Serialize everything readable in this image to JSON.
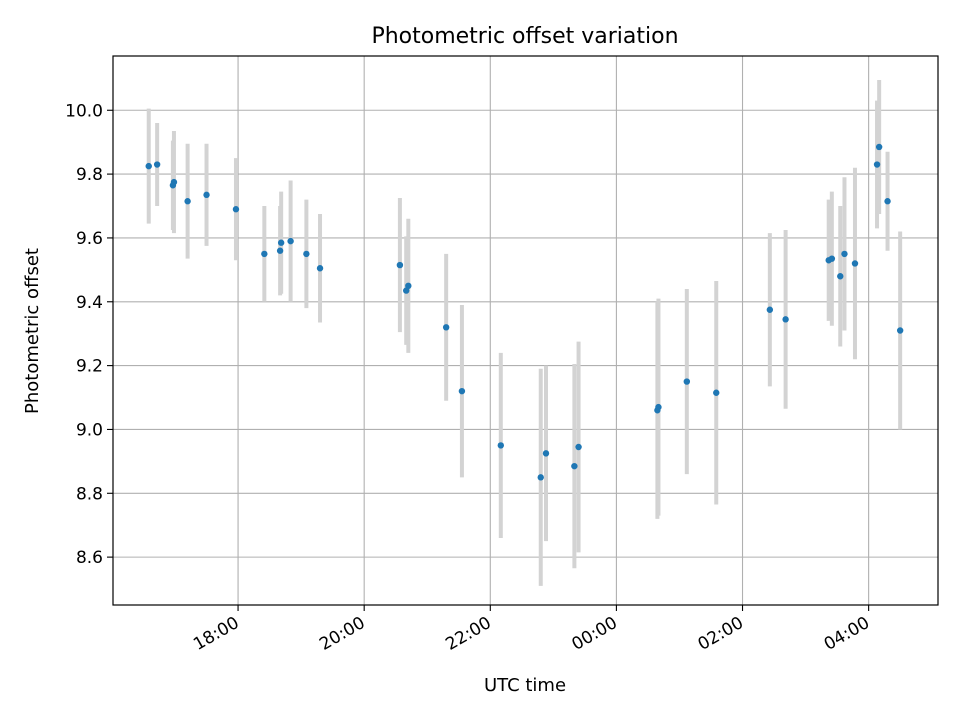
{
  "chart_data": {
    "type": "scatter",
    "title": "Photometric offset variation",
    "xlabel": "UTC time",
    "ylabel": "Photometric offset",
    "x_ticks": [
      "18:00",
      "20:00",
      "22:00",
      "00:00",
      "02:00",
      "04:00"
    ],
    "y_ticks": [
      8.6,
      8.8,
      9.0,
      9.2,
      9.4,
      9.6,
      9.8,
      10.0
    ],
    "xlim": [
      "16:01",
      "05:06"
    ],
    "ylim": [
      8.45,
      10.17
    ],
    "grid": true,
    "x_axis_days": 1,
    "colors": {
      "points": "#1f77b4",
      "errorbars": "#d3d3d3"
    },
    "points": [
      {
        "time": "16:35",
        "y": 9.825,
        "err": 0.18
      },
      {
        "time": "16:43",
        "y": 9.83,
        "err": 0.13
      },
      {
        "time": "16:58",
        "y": 9.765,
        "err": 0.14
      },
      {
        "time": "16:59",
        "y": 9.775,
        "err": 0.16
      },
      {
        "time": "17:12",
        "y": 9.715,
        "err": 0.18
      },
      {
        "time": "17:30",
        "y": 9.735,
        "err": 0.16
      },
      {
        "time": "17:58",
        "y": 9.69,
        "err": 0.16
      },
      {
        "time": "18:25",
        "y": 9.55,
        "err": 0.15
      },
      {
        "time": "18:40",
        "y": 9.56,
        "err": 0.14
      },
      {
        "time": "18:41",
        "y": 9.585,
        "err": 0.16
      },
      {
        "time": "18:50",
        "y": 9.59,
        "err": 0.19
      },
      {
        "time": "19:05",
        "y": 9.55,
        "err": 0.17
      },
      {
        "time": "19:18",
        "y": 9.505,
        "err": 0.17
      },
      {
        "time": "20:34",
        "y": 9.515,
        "err": 0.21
      },
      {
        "time": "20:40",
        "y": 9.435,
        "err": 0.17
      },
      {
        "time": "20:42",
        "y": 9.45,
        "err": 0.21
      },
      {
        "time": "21:18",
        "y": 9.32,
        "err": 0.23
      },
      {
        "time": "21:33",
        "y": 9.12,
        "err": 0.27
      },
      {
        "time": "22:10",
        "y": 8.95,
        "err": 0.29
      },
      {
        "time": "22:48",
        "y": 8.85,
        "err": 0.34
      },
      {
        "time": "22:53",
        "y": 8.925,
        "err": 0.275
      },
      {
        "time": "23:20",
        "y": 8.885,
        "err": 0.32
      },
      {
        "time": "23:24",
        "y": 8.945,
        "err": 0.33
      },
      {
        "time": "00:39",
        "y": 9.06,
        "err": 0.34
      },
      {
        "time": "00:40",
        "y": 9.07,
        "err": 0.34
      },
      {
        "time": "01:07",
        "y": 9.15,
        "err": 0.29
      },
      {
        "time": "01:35",
        "y": 9.115,
        "err": 0.35
      },
      {
        "time": "02:26",
        "y": 9.375,
        "err": 0.24
      },
      {
        "time": "02:41",
        "y": 9.345,
        "err": 0.28
      },
      {
        "time": "03:22",
        "y": 9.53,
        "err": 0.19
      },
      {
        "time": "03:25",
        "y": 9.535,
        "err": 0.21
      },
      {
        "time": "03:33",
        "y": 9.48,
        "err": 0.22
      },
      {
        "time": "03:37",
        "y": 9.55,
        "err": 0.24
      },
      {
        "time": "03:47",
        "y": 9.52,
        "err": 0.3
      },
      {
        "time": "04:08",
        "y": 9.83,
        "err": 0.2
      },
      {
        "time": "04:10",
        "y": 9.885,
        "err": 0.21
      },
      {
        "time": "04:18",
        "y": 9.715,
        "err": 0.155
      },
      {
        "time": "04:30",
        "y": 9.31,
        "err": 0.31
      }
    ]
  }
}
